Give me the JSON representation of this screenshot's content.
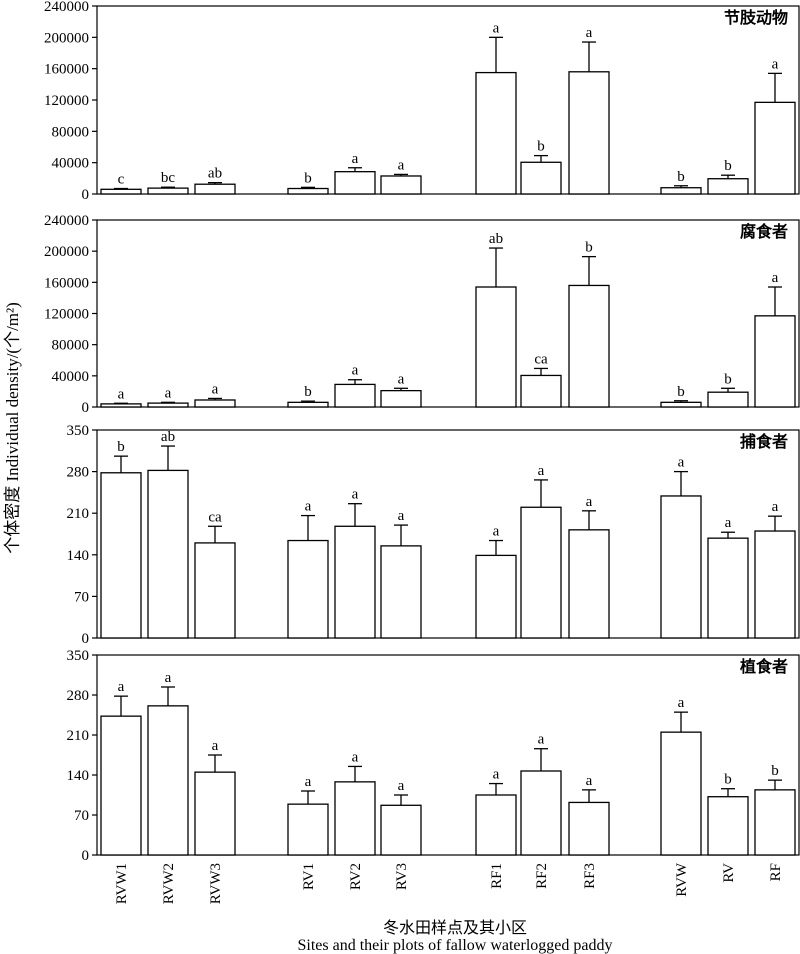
{
  "figure": {
    "ylabel": "个体密度 Individual density/(个/m²)",
    "xlabel_cn": "冬水田样点及其小区",
    "xlabel_en": "Sites and their plots of fallow waterlogged paddy"
  },
  "chart_data": [
    {
      "type": "bar",
      "title": "节肢动物",
      "categories": [
        "RVW1",
        "RVW2",
        "RVW3",
        "RV1",
        "RV2",
        "RV3",
        "RF1",
        "RF2",
        "RF3",
        "RVW",
        "RV",
        "RF"
      ],
      "values": [
        6000,
        7500,
        12500,
        7000,
        28500,
        23000,
        155000,
        40500,
        156000,
        8000,
        19500,
        117000
      ],
      "errors": [
        1000,
        1200,
        2000,
        1500,
        5000,
        2000,
        45000,
        8500,
        38000,
        2500,
        4500,
        37000
      ],
      "letters": [
        "c",
        "bc",
        "ab",
        "b",
        "a",
        "a",
        "a",
        "b",
        "a",
        "b",
        "b",
        "a"
      ],
      "ylim": [
        0,
        240000
      ],
      "yticks": [
        "0",
        "40000",
        "80000",
        "120000",
        "160000",
        "200000",
        "240000"
      ]
    },
    {
      "type": "bar",
      "title": "腐食者",
      "categories": [
        "RVW1",
        "RVW2",
        "RVW3",
        "RV1",
        "RV2",
        "RV3",
        "RF1",
        "RF2",
        "RF3",
        "RVW",
        "RV",
        "RF"
      ],
      "values": [
        4000,
        5000,
        9000,
        6000,
        29000,
        21000,
        154000,
        40500,
        156000,
        6000,
        19000,
        117000
      ],
      "errors": [
        800,
        1000,
        2000,
        1500,
        6000,
        3000,
        50000,
        9000,
        37000,
        2000,
        5000,
        37000
      ],
      "letters": [
        "a",
        "a",
        "a",
        "b",
        "a",
        "a",
        "ab",
        "ca",
        "b",
        "b",
        "b",
        "a"
      ],
      "ylim": [
        0,
        240000
      ],
      "yticks": [
        "0",
        "40000",
        "80000",
        "120000",
        "160000",
        "200000",
        "240000"
      ]
    },
    {
      "type": "bar",
      "title": "捕食者",
      "categories": [
        "RVW1",
        "RVW2",
        "RVW3",
        "RV1",
        "RV2",
        "RV3",
        "RF1",
        "RF2",
        "RF3",
        "RVW",
        "RV",
        "RF"
      ],
      "values": [
        278,
        282,
        160,
        164,
        188,
        155,
        139,
        220,
        182,
        239,
        168,
        180
      ],
      "errors": [
        28,
        41,
        28,
        42,
        38,
        35,
        25,
        46,
        32,
        41,
        10,
        25
      ],
      "letters": [
        "b",
        "ab",
        "ca",
        "a",
        "a",
        "a",
        "a",
        "a",
        "a",
        "a",
        "a",
        "a"
      ],
      "ylim": [
        0,
        350
      ],
      "yticks": [
        "0",
        "70",
        "140",
        "210",
        "280",
        "350"
      ]
    },
    {
      "type": "bar",
      "title": "植食者",
      "categories": [
        "RVW1",
        "RVW2",
        "RVW3",
        "RV1",
        "RV2",
        "RV3",
        "RF1",
        "RF2",
        "RF3",
        "RVW",
        "RV",
        "RF"
      ],
      "values": [
        243,
        261,
        145,
        89,
        128,
        87,
        105,
        147,
        92,
        215,
        102,
        114
      ],
      "errors": [
        35,
        33,
        30,
        23,
        27,
        18,
        20,
        39,
        22,
        35,
        14,
        17
      ],
      "letters": [
        "a",
        "a",
        "a",
        "a",
        "a",
        "a",
        "a",
        "a",
        "a",
        "a",
        "b",
        "b"
      ],
      "ylim": [
        0,
        350
      ],
      "yticks": [
        "0",
        "70",
        "140",
        "210",
        "280",
        "350"
      ]
    }
  ]
}
